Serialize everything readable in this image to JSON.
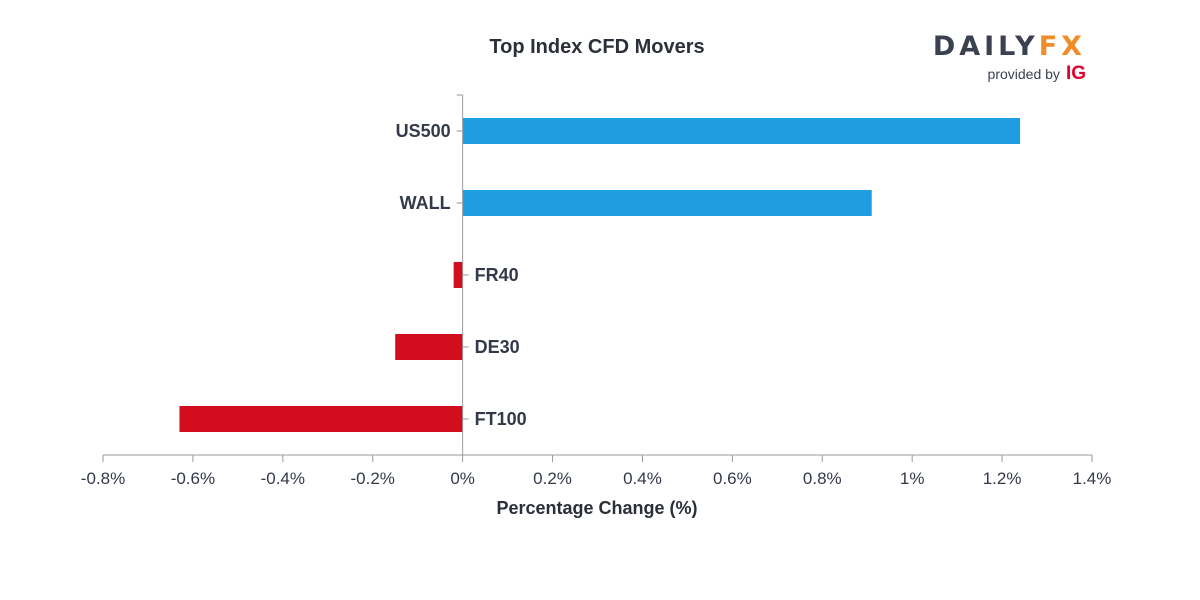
{
  "logo": {
    "brand_part1": "DAILY",
    "brand_part2": "FX",
    "provided_by": "provided by",
    "provider": "IG",
    "colors": {
      "brand": "#3b4150",
      "fx": "#f28c28",
      "ig": "#e4002b"
    }
  },
  "chart_data": {
    "type": "bar",
    "orientation": "horizontal",
    "title": "Top Index CFD Movers",
    "xlabel": "Percentage Change (%)",
    "ylabel": "",
    "categories": [
      "US500",
      "WALL",
      "FR40",
      "DE30",
      "FT100"
    ],
    "values": [
      1.24,
      0.91,
      -0.02,
      -0.15,
      -0.63
    ],
    "xlim": [
      -0.8,
      1.4
    ],
    "x_ticks": [
      -0.8,
      -0.6,
      -0.4,
      -0.2,
      0,
      0.2,
      0.4,
      0.6,
      0.8,
      1,
      1.2,
      1.4
    ],
    "x_tick_labels": [
      "-0.8%",
      "-0.6%",
      "-0.4%",
      "-0.2%",
      "0%",
      "0.2%",
      "0.4%",
      "0.6%",
      "0.8%",
      "1%",
      "1.2%",
      "1.4%"
    ],
    "grid": false,
    "legend": "none",
    "colors": {
      "positive": "#1e9de2",
      "negative": "#d20e1e",
      "axis": "#9a9a9a"
    }
  }
}
